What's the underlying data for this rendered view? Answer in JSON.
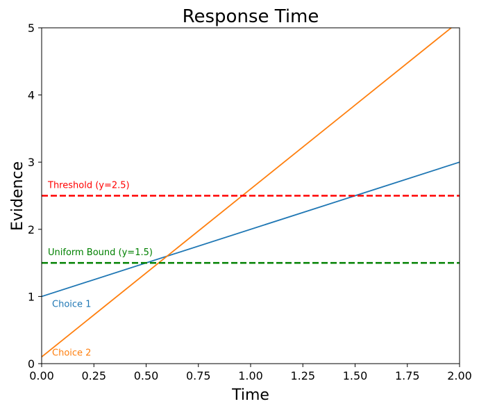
{
  "chart_data": {
    "type": "line",
    "title": "Response Time",
    "xlabel": "Time",
    "ylabel": "Evidence",
    "xlim": [
      0,
      2
    ],
    "ylim": [
      0,
      5
    ],
    "x_ticks": [
      "0.00",
      "0.25",
      "0.50",
      "0.75",
      "1.00",
      "1.25",
      "1.50",
      "1.75",
      "2.00"
    ],
    "y_ticks": [
      "0",
      "1",
      "2",
      "3",
      "4",
      "5"
    ],
    "grid": false,
    "series": [
      {
        "name": "Choice 1",
        "color": "#1f77b4",
        "x": [
          0,
          2
        ],
        "y": [
          1.0,
          3.0
        ]
      },
      {
        "name": "Choice 2",
        "color": "#ff7f0e",
        "x": [
          0,
          1.96
        ],
        "y": [
          0.1,
          5.0
        ]
      }
    ],
    "reference_lines": [
      {
        "label": "Threshold (y=2.5)",
        "y": 2.5,
        "color": "#ff0000",
        "style": "dashed"
      },
      {
        "label": "Uniform Bound (y=1.5)",
        "y": 1.5,
        "color": "#008000",
        "style": "dashed"
      }
    ]
  }
}
